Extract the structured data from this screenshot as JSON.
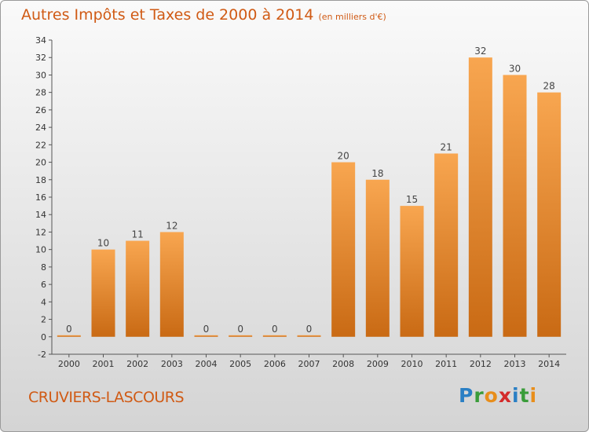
{
  "title": "Autres Impôts et Taxes de 2000 à 2014",
  "title_unit": "(en milliers d'€)",
  "commune": "CRUVIERS-LASCOURS",
  "logo": {
    "letters": [
      "P",
      "r",
      "o",
      "x",
      "i",
      "t",
      "i"
    ],
    "colors": [
      "#2a7fc4",
      "#3a9c3a",
      "#e88e1b",
      "#d42a2a",
      "#2a7fc4",
      "#3a9c3a",
      "#e88e1b"
    ]
  },
  "colors": {
    "bar_top": "#f8a650",
    "bar_bottom": "#c96a14",
    "title": "#d05a14"
  },
  "chart_data": {
    "type": "bar",
    "title": "Autres Impôts et Taxes de 2000 à 2014",
    "ylabel": "",
    "xlabel": "",
    "categories": [
      "2000",
      "2001",
      "2002",
      "2003",
      "2004",
      "2005",
      "2006",
      "2007",
      "2008",
      "2009",
      "2010",
      "2011",
      "2012",
      "2013",
      "2014"
    ],
    "values": [
      0,
      10,
      11,
      12,
      0,
      0,
      0,
      0,
      20,
      18,
      15,
      21,
      32,
      30,
      28
    ],
    "ylim": [
      -2,
      34
    ],
    "yticks": [
      -2,
      0,
      2,
      4,
      6,
      8,
      10,
      12,
      14,
      16,
      18,
      20,
      22,
      24,
      26,
      28,
      30,
      32,
      34
    ],
    "grid": false,
    "legend": "none"
  }
}
